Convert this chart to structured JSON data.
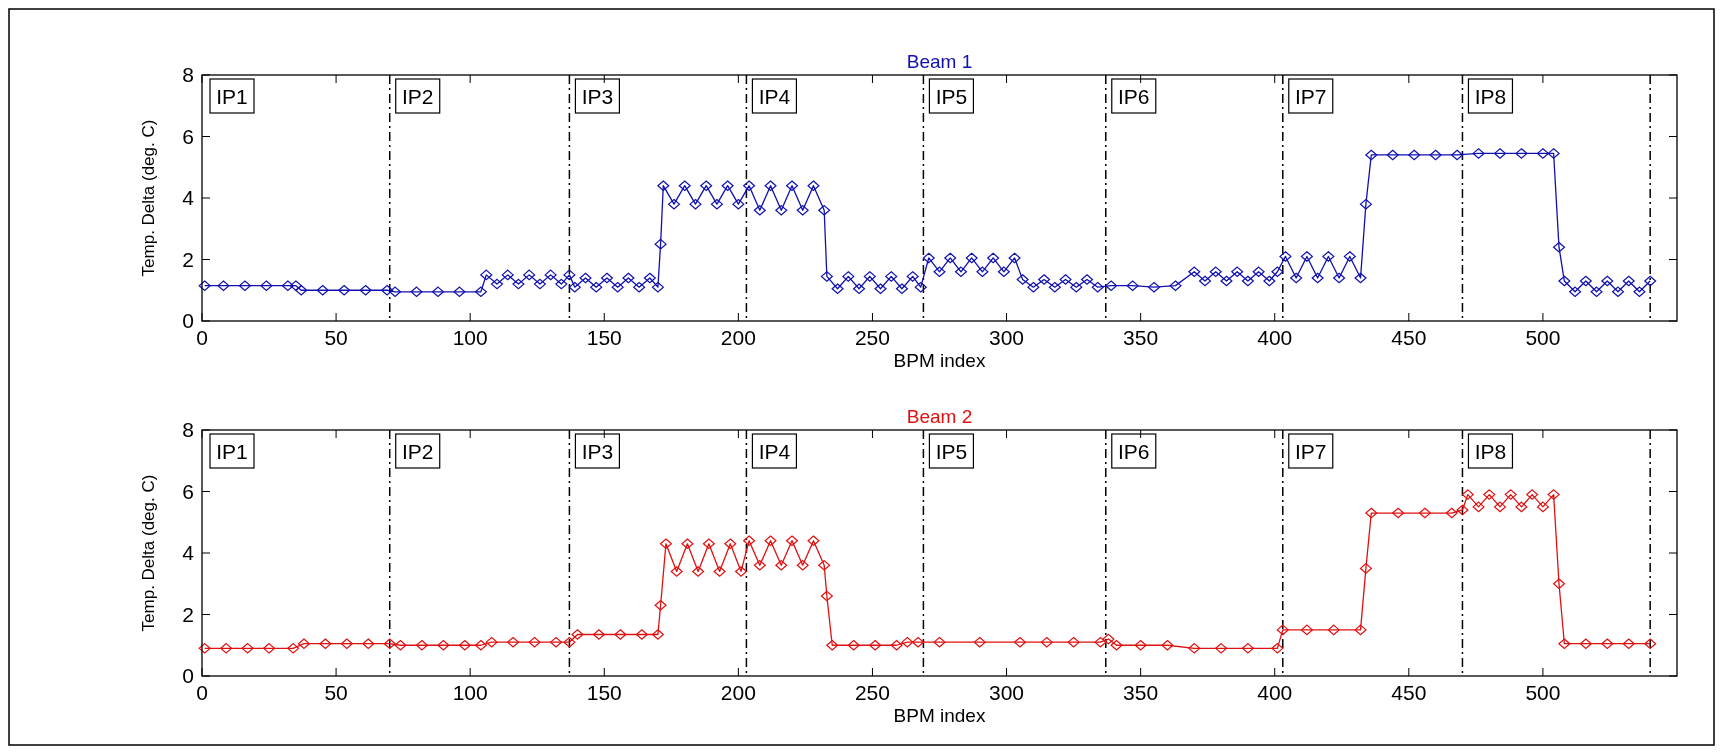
{
  "chart_data": [
    {
      "type": "line",
      "title": "Beam 1",
      "xlabel": "BPM index",
      "ylabel": "Temp. Delta (deg. C)",
      "xlim": [
        0,
        550
      ],
      "xticks": [
        0,
        50,
        100,
        150,
        200,
        250,
        300,
        350,
        400,
        450,
        500
      ],
      "ylim": [
        0,
        8
      ],
      "yticks": [
        0,
        2,
        4,
        6,
        8
      ],
      "grid": false,
      "marker": "diamond",
      "series": [
        {
          "color": "#1010b0",
          "x": [
            1,
            8,
            16,
            24,
            32,
            35,
            37,
            45,
            53,
            61,
            69,
            72,
            80,
            88,
            96,
            104,
            106,
            110,
            114,
            118,
            122,
            126,
            130,
            134,
            137,
            139,
            143,
            147,
            151,
            155,
            159,
            163,
            167,
            170,
            171,
            172,
            176,
            180,
            184,
            188,
            192,
            196,
            200,
            204,
            208,
            212,
            216,
            220,
            224,
            228,
            232,
            233,
            237,
            241,
            245,
            249,
            253,
            257,
            261,
            265,
            268,
            271,
            275,
            279,
            283,
            287,
            291,
            295,
            299,
            303,
            306,
            310,
            314,
            318,
            322,
            326,
            330,
            334,
            339,
            347,
            355,
            363,
            370,
            374,
            378,
            382,
            386,
            390,
            394,
            398,
            401,
            404,
            408,
            412,
            416,
            420,
            424,
            428,
            432,
            434,
            436,
            444,
            452,
            460,
            468,
            476,
            484,
            492,
            500,
            504,
            506,
            508,
            512,
            516,
            520,
            524,
            528,
            532,
            536,
            540
          ],
          "values": [
            1.15,
            1.15,
            1.15,
            1.15,
            1.15,
            1.15,
            1.0,
            1.0,
            1.0,
            1.0,
            1.0,
            0.95,
            0.95,
            0.95,
            0.95,
            0.95,
            1.5,
            1.2,
            1.5,
            1.2,
            1.5,
            1.2,
            1.5,
            1.2,
            1.5,
            1.1,
            1.4,
            1.1,
            1.4,
            1.1,
            1.4,
            1.1,
            1.4,
            1.1,
            2.5,
            4.4,
            3.8,
            4.4,
            3.8,
            4.4,
            3.8,
            4.4,
            3.8,
            4.4,
            3.6,
            4.4,
            3.6,
            4.4,
            3.6,
            4.4,
            3.6,
            1.45,
            1.05,
            1.45,
            1.05,
            1.45,
            1.05,
            1.45,
            1.05,
            1.45,
            1.1,
            2.05,
            1.6,
            2.05,
            1.6,
            2.05,
            1.6,
            2.05,
            1.6,
            2.05,
            1.35,
            1.1,
            1.35,
            1.1,
            1.35,
            1.1,
            1.35,
            1.1,
            1.15,
            1.15,
            1.1,
            1.15,
            1.6,
            1.3,
            1.6,
            1.3,
            1.6,
            1.3,
            1.6,
            1.3,
            1.6,
            2.1,
            1.4,
            2.1,
            1.4,
            2.1,
            1.4,
            2.1,
            1.4,
            3.8,
            5.4,
            5.4,
            5.4,
            5.4,
            5.4,
            5.45,
            5.45,
            5.45,
            5.45,
            5.45,
            2.4,
            1.3,
            0.95,
            1.3,
            0.95,
            1.3,
            0.95,
            1.3,
            0.95,
            1.3
          ]
        }
      ],
      "ref_lines": [
        {
          "axis": "x",
          "value": 70,
          "color": "#000000",
          "line_style": "dashed"
        },
        {
          "axis": "x",
          "value": 137,
          "color": "#000000",
          "line_style": "dashed"
        },
        {
          "axis": "x",
          "value": 203,
          "color": "#000000",
          "line_style": "dashed"
        },
        {
          "axis": "x",
          "value": 269,
          "color": "#000000",
          "line_style": "dashed"
        },
        {
          "axis": "x",
          "value": 337,
          "color": "#000000",
          "line_style": "dashed"
        },
        {
          "axis": "x",
          "value": 403,
          "color": "#000000",
          "line_style": "dashed"
        },
        {
          "axis": "x",
          "value": 470,
          "color": "#000000",
          "line_style": "dashed"
        },
        {
          "axis": "x",
          "value": 540,
          "color": "#000000",
          "line_style": "dashed"
        }
      ],
      "annotations": [
        "IP1",
        "IP2",
        "IP3",
        "IP4",
        "IP5",
        "IP6",
        "IP7",
        "IP8"
      ]
    },
    {
      "type": "line",
      "title": "Beam 2",
      "xlabel": "BPM index",
      "ylabel": "Temp. Delta (deg. C)",
      "xlim": [
        0,
        550
      ],
      "xticks": [
        0,
        50,
        100,
        150,
        200,
        250,
        300,
        350,
        400,
        450,
        500
      ],
      "ylim": [
        0,
        8
      ],
      "yticks": [
        0,
        2,
        4,
        6,
        8
      ],
      "grid": false,
      "marker": "diamond",
      "series": [
        {
          "color": "#e01010",
          "x": [
            1,
            9,
            17,
            25,
            34,
            38,
            46,
            54,
            62,
            70,
            74,
            82,
            90,
            98,
            104,
            108,
            116,
            124,
            132,
            137,
            140,
            148,
            156,
            164,
            170,
            171,
            173,
            177,
            181,
            185,
            189,
            193,
            197,
            201,
            204,
            208,
            212,
            216,
            220,
            224,
            228,
            232,
            233,
            235,
            243,
            251,
            259,
            263,
            267,
            275,
            290,
            305,
            315,
            325,
            335,
            338,
            341,
            350,
            360,
            370,
            380,
            390,
            401,
            403,
            412,
            422,
            432,
            434,
            436,
            446,
            456,
            466,
            470,
            472,
            476,
            480,
            484,
            488,
            492,
            496,
            500,
            504,
            506,
            508,
            516,
            524,
            532,
            540
          ],
          "values": [
            0.9,
            0.9,
            0.9,
            0.9,
            0.9,
            1.05,
            1.05,
            1.05,
            1.05,
            1.05,
            1.0,
            1.0,
            1.0,
            1.0,
            1.0,
            1.1,
            1.1,
            1.1,
            1.1,
            1.1,
            1.35,
            1.35,
            1.35,
            1.35,
            1.35,
            2.3,
            4.3,
            3.4,
            4.3,
            3.4,
            4.3,
            3.4,
            4.3,
            3.4,
            4.4,
            3.6,
            4.4,
            3.6,
            4.4,
            3.6,
            4.4,
            3.6,
            2.6,
            1.0,
            1.0,
            1.0,
            1.0,
            1.1,
            1.1,
            1.1,
            1.1,
            1.1,
            1.1,
            1.1,
            1.1,
            1.2,
            1.0,
            1.0,
            1.0,
            0.9,
            0.9,
            0.9,
            0.9,
            1.5,
            1.5,
            1.5,
            1.5,
            3.5,
            5.3,
            5.3,
            5.3,
            5.3,
            5.4,
            5.9,
            5.5,
            5.9,
            5.5,
            5.9,
            5.5,
            5.9,
            5.5,
            5.9,
            3.0,
            1.05,
            1.05,
            1.05,
            1.05,
            1.05
          ]
        }
      ],
      "ref_lines": [
        {
          "axis": "x",
          "value": 70,
          "color": "#000000",
          "line_style": "dashed"
        },
        {
          "axis": "x",
          "value": 137,
          "color": "#000000",
          "line_style": "dashed"
        },
        {
          "axis": "x",
          "value": 203,
          "color": "#000000",
          "line_style": "dashed"
        },
        {
          "axis": "x",
          "value": 269,
          "color": "#000000",
          "line_style": "dashed"
        },
        {
          "axis": "x",
          "value": 337,
          "color": "#000000",
          "line_style": "dashed"
        },
        {
          "axis": "x",
          "value": 403,
          "color": "#000000",
          "line_style": "dashed"
        },
        {
          "axis": "x",
          "value": 470,
          "color": "#000000",
          "line_style": "dashed"
        },
        {
          "axis": "x",
          "value": 540,
          "color": "#000000",
          "line_style": "dashed"
        }
      ],
      "annotations": [
        "IP1",
        "IP2",
        "IP3",
        "IP4",
        "IP5",
        "IP6",
        "IP7",
        "IP8"
      ]
    }
  ]
}
